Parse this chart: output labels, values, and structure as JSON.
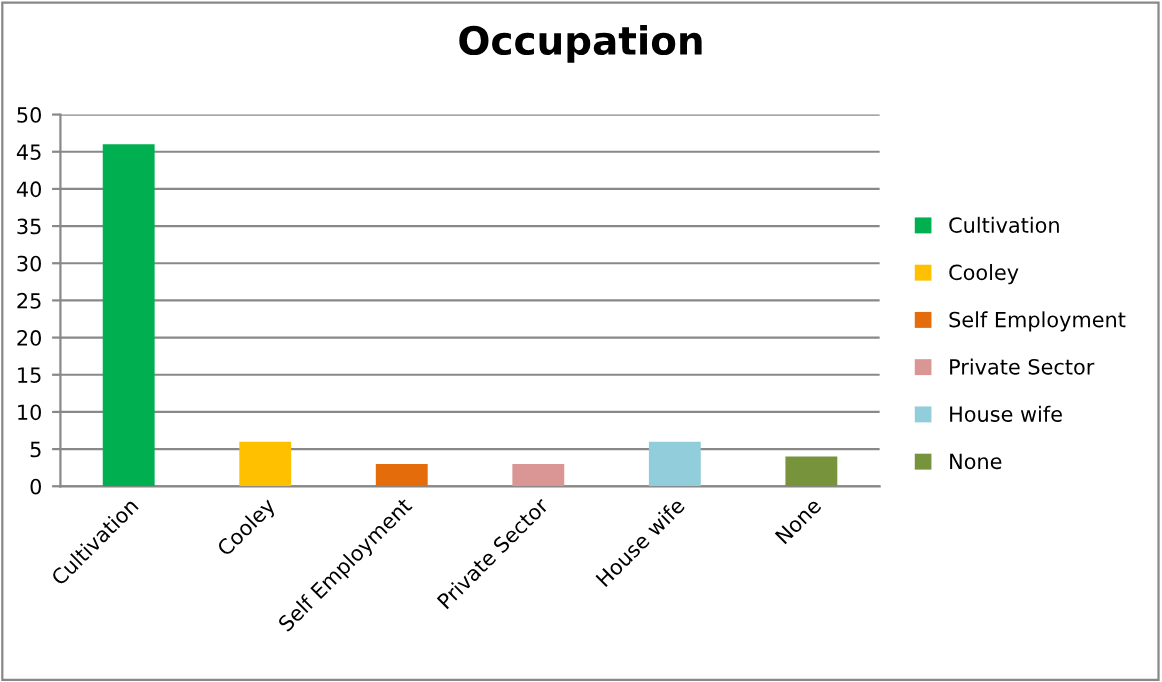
{
  "chart_data": {
    "type": "bar",
    "title": "Occupation",
    "categories": [
      "Cultivation",
      "Cooley",
      "Self Employment",
      "Private Sector",
      "House wife",
      "None"
    ],
    "series": [
      {
        "name": "Cultivation",
        "color": "#00b050",
        "values": [
          46,
          null,
          null,
          null,
          null,
          null
        ]
      },
      {
        "name": "Cooley",
        "color": "#ffc000",
        "values": [
          null,
          6,
          null,
          null,
          null,
          null
        ]
      },
      {
        "name": "Self Employment",
        "color": "#e46c0a",
        "values": [
          null,
          null,
          3,
          null,
          null,
          null
        ]
      },
      {
        "name": "Private Sector",
        "color": "#d99694",
        "values": [
          null,
          null,
          null,
          3,
          null,
          null
        ]
      },
      {
        "name": "House wife",
        "color": "#92cddc",
        "values": [
          null,
          null,
          null,
          null,
          6,
          null
        ]
      },
      {
        "name": "None",
        "color": "#77933c",
        "values": [
          null,
          null,
          null,
          null,
          null,
          4
        ]
      }
    ],
    "ylim": [
      0,
      50
    ],
    "yticks": [
      0,
      5,
      10,
      15,
      20,
      25,
      30,
      35,
      40,
      45,
      50
    ],
    "grid": "y",
    "legend": "right"
  }
}
